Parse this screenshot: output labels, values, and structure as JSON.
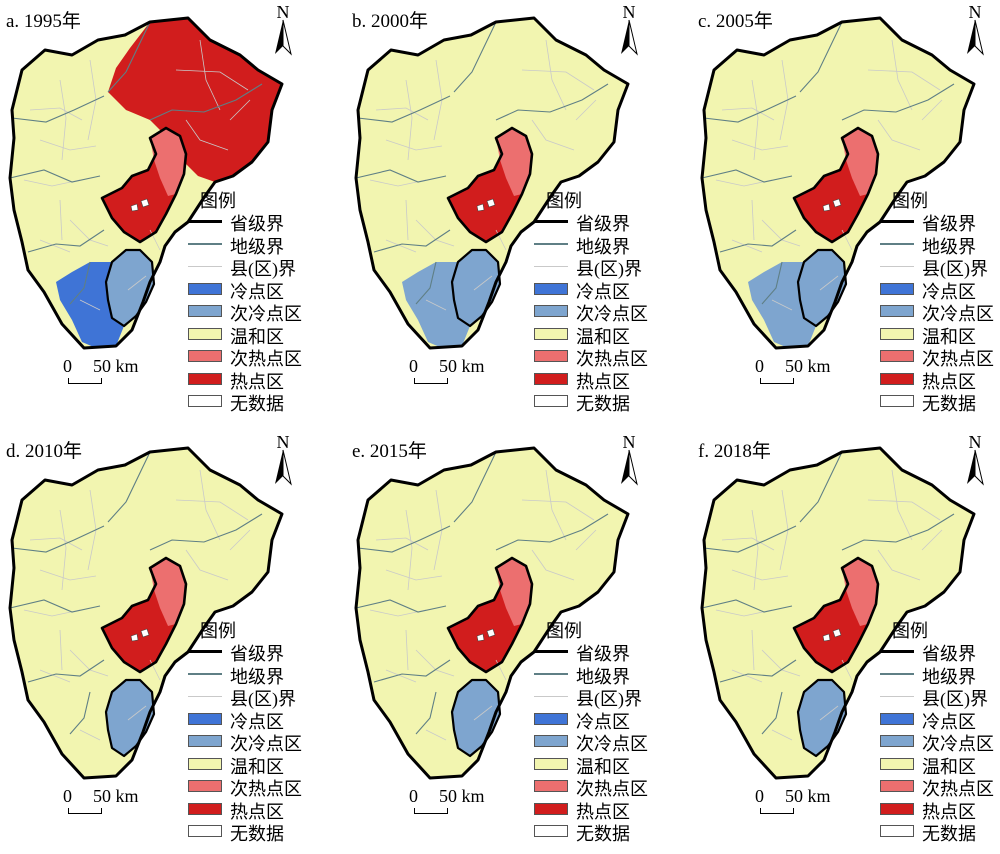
{
  "colors": {
    "cold": "#3f74d6",
    "subcold": "#7ea5cf",
    "mild": "#f2f5b0",
    "subhot": "#ec6f6f",
    "hot": "#d11d1d",
    "nodata": "#ffffff",
    "province_line": "#000000",
    "city_line": "#5f7f85",
    "county_line": "#c9c9c9"
  },
  "legend": {
    "title": "图例",
    "items": [
      {
        "label": "省级界",
        "kind": "line-prov"
      },
      {
        "label": "地级界",
        "kind": "line-city"
      },
      {
        "label": "县(区)界",
        "kind": "line-county"
      },
      {
        "label": "冷点区",
        "kind": "cold"
      },
      {
        "label": "次冷点区",
        "kind": "subcold"
      },
      {
        "label": "温和区",
        "kind": "mild"
      },
      {
        "label": "次热点区",
        "kind": "subhot"
      },
      {
        "label": "热点区",
        "kind": "hot"
      },
      {
        "label": "无数据",
        "kind": "nodata"
      }
    ]
  },
  "north_label": "N",
  "scale": {
    "zero": "0",
    "distance": "50 km"
  },
  "panels": [
    {
      "title": "a. 1995年",
      "classes": {
        "beijing": "hot",
        "north_tianjin": "subhot",
        "hebei_ne": "hot",
        "tianjin_south": "subcold",
        "hebei_south": "cold"
      }
    },
    {
      "title": "b. 2000年",
      "classes": {
        "beijing": "hot",
        "north_tianjin": "subhot",
        "hebei_ne": "mild",
        "tianjin_south": "subcold",
        "hebei_south": "subcold"
      }
    },
    {
      "title": "c. 2005年",
      "classes": {
        "beijing": "hot",
        "north_tianjin": "subhot",
        "hebei_ne": "mild",
        "tianjin_south": "subcold",
        "hebei_south": "subcold"
      }
    },
    {
      "title": "d. 2010年",
      "classes": {
        "beijing": "hot",
        "north_tianjin": "subhot",
        "hebei_ne": "mild",
        "tianjin_south": "subcold",
        "hebei_south": "mild"
      }
    },
    {
      "title": "e. 2015年",
      "classes": {
        "beijing": "hot",
        "north_tianjin": "subhot",
        "hebei_ne": "mild",
        "tianjin_south": "subcold",
        "hebei_south": "mild"
      }
    },
    {
      "title": "f. 2018年",
      "classes": {
        "beijing": "hot",
        "north_tianjin": "subhot",
        "hebei_ne": "mild",
        "tianjin_south": "subcold",
        "hebei_south": "mild"
      }
    }
  ]
}
